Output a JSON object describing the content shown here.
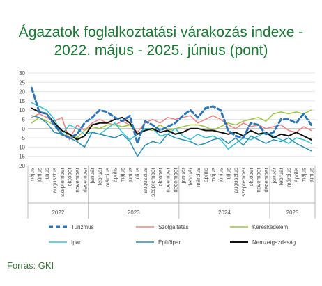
{
  "title_line1": "Ágazatok foglalkoztatási várakozás indexe -",
  "title_line2": "2022. május - 2025. június (pont)",
  "source": "Forrás: GKI",
  "chart_data": {
    "type": "line",
    "title": "Ágazatok foglalkoztatási várakozás indexe - 2022. május - 2025. június (pont)",
    "ylim": [
      -20,
      30
    ],
    "yticks": [
      30,
      25,
      20,
      15,
      10,
      5,
      0,
      -5,
      -10,
      -15,
      -20
    ],
    "grid": true,
    "legend_position": "bottom",
    "categories": [
      "május",
      "június",
      "július",
      "augusztus",
      "szeptember",
      "október",
      "november",
      "december",
      "január",
      "február",
      "március",
      "április",
      "május",
      "június",
      "július",
      "augusztus",
      "szeptember",
      "október",
      "november",
      "december",
      "január",
      "február",
      "március",
      "április",
      "május",
      "június",
      "július",
      "augusztus",
      "szeptember",
      "október",
      "november",
      "december",
      "január",
      "február",
      "március",
      "április",
      "május",
      "június"
    ],
    "years": [
      {
        "label": "2022",
        "start": 0,
        "end": 7
      },
      {
        "label": "2023",
        "start": 8,
        "end": 19
      },
      {
        "label": "2024",
        "start": 20,
        "end": 31
      },
      {
        "label": "2025",
        "start": 32,
        "end": 37
      }
    ],
    "series": [
      {
        "name": "Turizmus",
        "color": "#2e75b6",
        "dashed": true,
        "width": 3,
        "values": [
          22,
          9,
          8,
          2,
          -3,
          -5,
          -3,
          3,
          6,
          10,
          9,
          6,
          4,
          7,
          -8,
          4,
          2,
          -1,
          1,
          3,
          7,
          10,
          6,
          11,
          12,
          10,
          -1,
          -4,
          -5,
          3,
          2,
          -3,
          -2,
          5,
          5,
          3,
          8,
          2
        ]
      },
      {
        "name": "Szolgáltatás",
        "color": "#f08080",
        "dashed": false,
        "width": 1.5,
        "values": [
          6,
          8,
          6,
          4,
          6,
          -6,
          2,
          -1,
          3,
          5,
          3,
          2,
          4,
          2,
          -2,
          3,
          5,
          3,
          6,
          5,
          6,
          7,
          3,
          5,
          7,
          5,
          2,
          0,
          3,
          1,
          2,
          0,
          1,
          2,
          -1,
          -2,
          1,
          -1
        ]
      },
      {
        "name": "Kereskedelem",
        "color": "#9bc53d",
        "dashed": false,
        "width": 1.5,
        "values": [
          3,
          6,
          4,
          2,
          -4,
          -3,
          -5,
          -1,
          1,
          0,
          2,
          2,
          1,
          2,
          -3,
          0,
          -1,
          2,
          -1,
          0,
          1,
          2,
          2,
          1,
          -1,
          1,
          3,
          2,
          4,
          5,
          6,
          4,
          8,
          9,
          8,
          9,
          8,
          10
        ]
      },
      {
        "name": "Ipar",
        "color": "#33c1d4",
        "dashed": false,
        "width": 1.5,
        "values": [
          14,
          12,
          10,
          5,
          -3,
          2,
          0,
          -3,
          -2,
          -3,
          0,
          3,
          -2,
          -6,
          -3,
          0,
          0,
          -4,
          -3,
          0,
          -4,
          -6,
          -3,
          -5,
          -4,
          -6,
          -11,
          -8,
          -5,
          -6,
          -4,
          -2,
          -4,
          -6,
          -8,
          -5,
          -6,
          -8
        ]
      },
      {
        "name": "Építőipar",
        "color": "#2a8fb0",
        "dashed": false,
        "width": 1.5,
        "values": [
          7,
          6,
          3,
          -2,
          -3,
          -5,
          -7,
          -10,
          -2,
          -3,
          -4,
          -5,
          -3,
          -7,
          -15,
          -9,
          -7,
          -8,
          -3,
          -5,
          -6,
          -7,
          -9,
          -8,
          -6,
          -5,
          -8,
          -5,
          -9,
          -4,
          -6,
          -8,
          -6,
          -7,
          -5,
          -8,
          -10,
          -12
        ]
      },
      {
        "name": "Nemzetgazdaság",
        "color": "#111111",
        "dashed": false,
        "width": 2,
        "values": [
          11,
          9,
          8,
          3,
          -1,
          -3,
          -6,
          -4,
          2,
          3,
          3,
          5,
          6,
          3,
          -3,
          -1,
          0,
          -2,
          -1,
          -3,
          -2,
          0,
          0,
          -1,
          -1,
          -2,
          -3,
          -2,
          -4,
          -1,
          -3,
          -2,
          -5,
          -3,
          -4,
          -2,
          -4,
          -6
        ]
      }
    ]
  }
}
